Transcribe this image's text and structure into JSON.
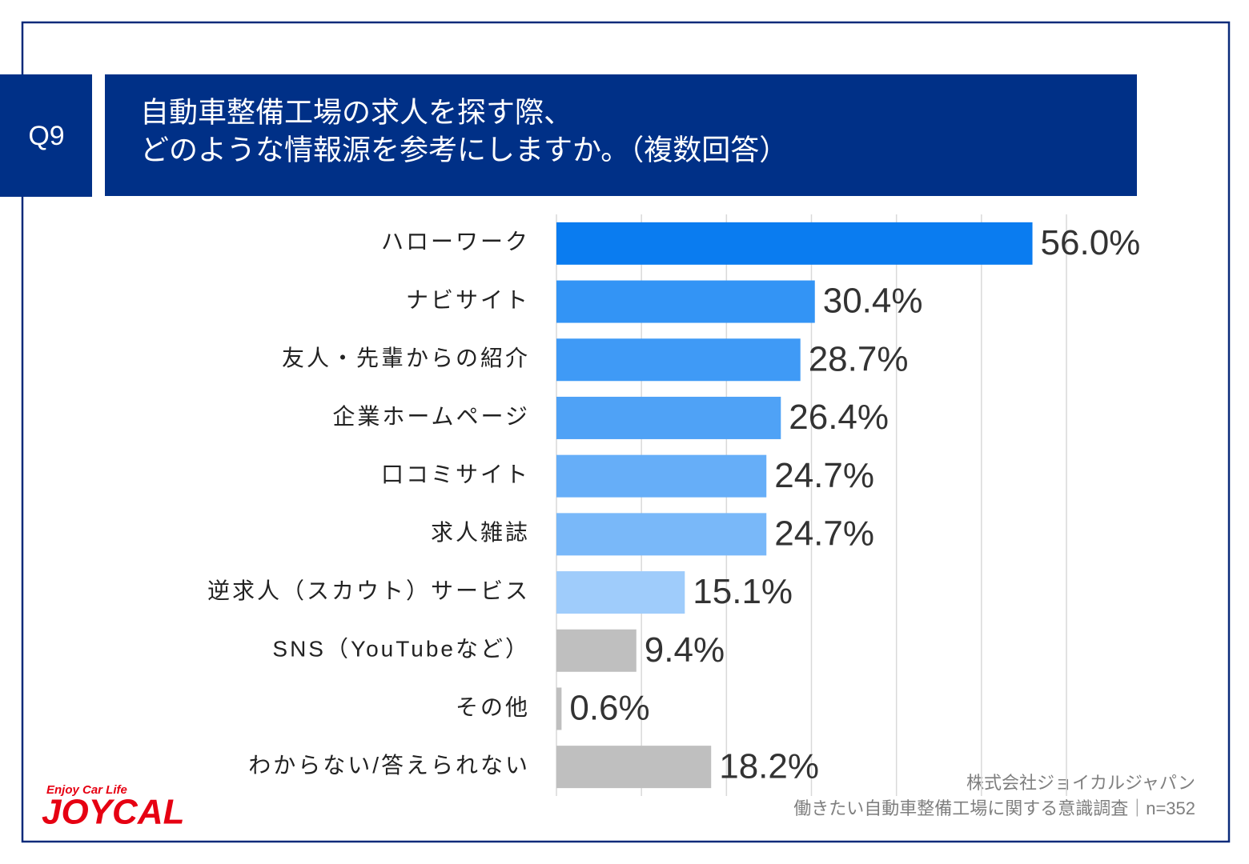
{
  "question_label": "Q9",
  "logo": {
    "tagline": "Enjoy Car Life",
    "name": "JOYCAL"
  },
  "source": [
    "株式会社ジョイカルジャパン",
    "働きたい自動車整備工場に関する意識調査｜n=352"
  ],
  "chart_data": {
    "type": "bar",
    "orientation": "horizontal",
    "title": [
      "自動車整備工場の求人を探す際、",
      "どのような情報源を参考にしますか。（複数回答）"
    ],
    "categories": [
      "ハローワーク",
      "ナビサイト",
      "友人・先輩からの紹介",
      "企業ホームページ",
      "口コミサイト",
      "求人雑誌",
      "逆求人（スカウト）サービス",
      "SNS（YouTubeなど）",
      "その他",
      "わからない/答えられない"
    ],
    "values": [
      56.0,
      30.4,
      28.7,
      26.4,
      24.7,
      24.7,
      15.1,
      9.4,
      0.6,
      18.2
    ],
    "value_labels": [
      "56.0%",
      "30.4%",
      "28.7%",
      "26.4%",
      "24.7%",
      "24.7%",
      "15.1%",
      "9.4%",
      "0.6%",
      "18.2%"
    ],
    "colors": [
      "#0a7cf0",
      "#3394f5",
      "#3f9af6",
      "#4fa2f6",
      "#66aef8",
      "#79b8f9",
      "#9fccfb",
      "#bfbfbf",
      "#bfbfbf",
      "#bfbfbf"
    ],
    "xlim": [
      0,
      60
    ],
    "xticks": [
      0,
      10,
      20,
      30,
      40,
      50,
      60
    ],
    "grid": true
  }
}
